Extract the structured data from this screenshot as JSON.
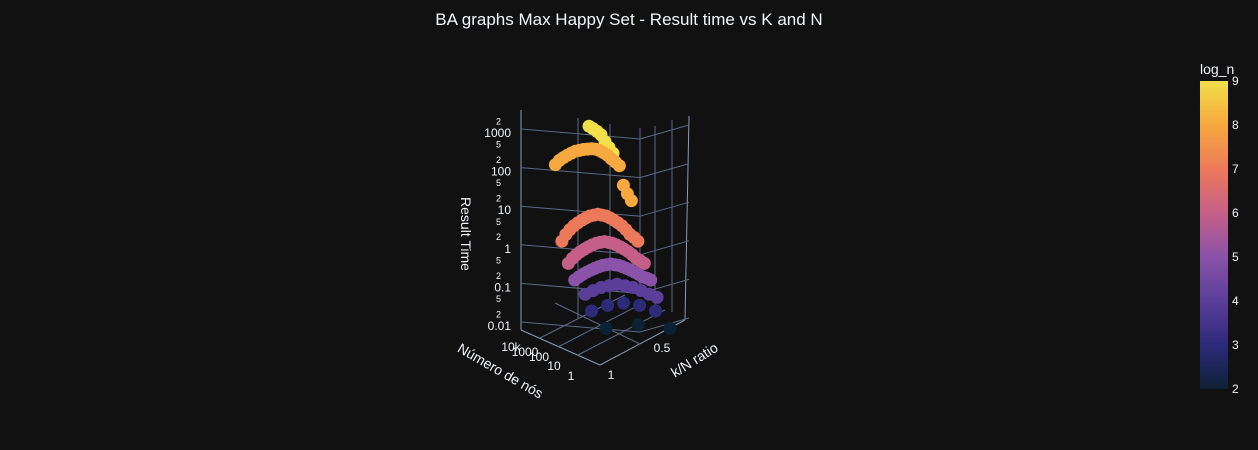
{
  "chart_data": {
    "type": "scatter3d",
    "title": "BA graphs Max Happy Set - Result time vs K and N",
    "axes": {
      "x": {
        "label": "k/N ratio",
        "ticks": [
          "0.5",
          "1"
        ]
      },
      "y": {
        "label": "Número de nós",
        "type": "log",
        "ticks": [
          "1",
          "10",
          "100",
          "1000",
          "10k"
        ]
      },
      "z": {
        "label": "Result Time",
        "type": "log",
        "major_ticks": [
          "0.01",
          "0.1",
          "1",
          "10",
          "100",
          "1000"
        ],
        "minor_ticks": [
          "2",
          "5"
        ]
      }
    },
    "colorbar": {
      "title": "log_n",
      "ticks": [
        "2",
        "3",
        "4",
        "5",
        "6",
        "7",
        "8",
        "9"
      ],
      "range": [
        2,
        9
      ]
    },
    "colorscale": [
      "#0d2135",
      "#2d2a7a",
      "#5a3e9a",
      "#8a52a8",
      "#c65f88",
      "#ec7a5a",
      "#f7a83e",
      "#f1e04a"
    ],
    "series": [
      {
        "log_n": 9,
        "points": [
          [
            0.55,
            1500
          ],
          [
            0.6,
            1300
          ],
          [
            0.65,
            1100
          ],
          [
            0.7,
            900
          ],
          [
            0.75,
            600
          ],
          [
            0.8,
            420
          ],
          [
            0.85,
            300
          ]
        ]
      },
      {
        "log_n": 8,
        "points": [
          [
            0.05,
            170
          ],
          [
            0.1,
            220
          ],
          [
            0.15,
            260
          ],
          [
            0.2,
            300
          ],
          [
            0.25,
            340
          ],
          [
            0.3,
            380
          ],
          [
            0.35,
            400
          ],
          [
            0.4,
            420
          ],
          [
            0.45,
            430
          ],
          [
            0.5,
            440
          ],
          [
            0.55,
            430
          ],
          [
            0.6,
            400
          ],
          [
            0.65,
            350
          ],
          [
            0.7,
            300
          ],
          [
            0.75,
            240
          ],
          [
            0.8,
            200
          ],
          [
            0.85,
            160
          ],
          [
            0.9,
            50
          ],
          [
            0.95,
            30
          ],
          [
            1.0,
            20
          ]
        ]
      },
      {
        "log_n": 7,
        "points": [
          [
            0.05,
            2
          ],
          [
            0.1,
            3
          ],
          [
            0.15,
            4
          ],
          [
            0.2,
            5
          ],
          [
            0.25,
            6
          ],
          [
            0.3,
            7
          ],
          [
            0.35,
            8
          ],
          [
            0.4,
            9
          ],
          [
            0.45,
            9.5
          ],
          [
            0.5,
            10
          ],
          [
            0.55,
            9.5
          ],
          [
            0.6,
            9
          ],
          [
            0.65,
            8
          ],
          [
            0.7,
            7
          ],
          [
            0.75,
            6
          ],
          [
            0.8,
            5
          ],
          [
            0.85,
            4
          ],
          [
            0.9,
            3
          ],
          [
            0.95,
            2.5
          ],
          [
            1.0,
            2
          ]
        ]
      },
      {
        "log_n": 6,
        "points": [
          [
            0.05,
            0.6
          ],
          [
            0.1,
            0.8
          ],
          [
            0.15,
            1
          ],
          [
            0.2,
            1.2
          ],
          [
            0.25,
            1.4
          ],
          [
            0.3,
            1.6
          ],
          [
            0.35,
            1.8
          ],
          [
            0.4,
            2
          ],
          [
            0.45,
            2.1
          ],
          [
            0.5,
            2.2
          ],
          [
            0.55,
            2.1
          ],
          [
            0.6,
            2
          ],
          [
            0.65,
            1.8
          ],
          [
            0.7,
            1.6
          ],
          [
            0.75,
            1.4
          ],
          [
            0.8,
            1.2
          ],
          [
            0.85,
            1
          ],
          [
            0.9,
            0.8
          ],
          [
            0.95,
            0.7
          ],
          [
            1.0,
            0.6
          ]
        ]
      },
      {
        "log_n": 5,
        "points": [
          [
            0.05,
            0.25
          ],
          [
            0.1,
            0.3
          ],
          [
            0.15,
            0.35
          ],
          [
            0.2,
            0.4
          ],
          [
            0.25,
            0.45
          ],
          [
            0.3,
            0.5
          ],
          [
            0.35,
            0.55
          ],
          [
            0.4,
            0.6
          ],
          [
            0.45,
            0.62
          ],
          [
            0.5,
            0.65
          ],
          [
            0.55,
            0.62
          ],
          [
            0.6,
            0.6
          ],
          [
            0.65,
            0.55
          ],
          [
            0.7,
            0.5
          ],
          [
            0.75,
            0.45
          ],
          [
            0.8,
            0.4
          ],
          [
            0.85,
            0.35
          ],
          [
            0.9,
            0.3
          ],
          [
            0.95,
            0.28
          ],
          [
            1.0,
            0.25
          ]
        ]
      },
      {
        "log_n": 4,
        "points": [
          [
            0.1,
            0.12
          ],
          [
            0.2,
            0.15
          ],
          [
            0.3,
            0.18
          ],
          [
            0.4,
            0.2
          ],
          [
            0.5,
            0.22
          ],
          [
            0.6,
            0.2
          ],
          [
            0.7,
            0.18
          ],
          [
            0.8,
            0.15
          ],
          [
            0.9,
            0.12
          ],
          [
            1.0,
            0.1
          ]
        ]
      },
      {
        "log_n": 3,
        "points": [
          [
            0.1,
            0.05
          ],
          [
            0.3,
            0.07
          ],
          [
            0.5,
            0.08
          ],
          [
            0.7,
            0.07
          ],
          [
            0.9,
            0.05
          ]
        ]
      },
      {
        "log_n": 2,
        "points": [
          [
            0.2,
            0.02
          ],
          [
            0.6,
            0.025
          ],
          [
            1.0,
            0.02
          ]
        ]
      }
    ]
  }
}
